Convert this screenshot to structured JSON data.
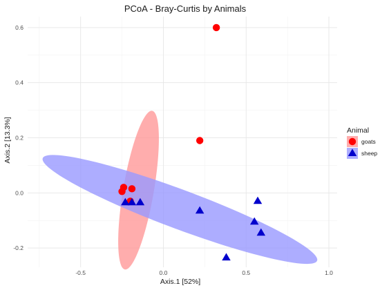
{
  "chart_data": {
    "type": "scatter",
    "title": "PCoA - Bray-Curtis by Animals",
    "xlabel": "Axis.1   [52%]",
    "ylabel": "Axis.2   [13.3%]",
    "xlim": [
      -0.82,
      1.05
    ],
    "ylim": [
      -0.27,
      0.64
    ],
    "x_ticks": [
      -0.5,
      0.0,
      0.5,
      1.0
    ],
    "x_tick_labels": [
      "-0.5",
      "0.0",
      "0.5",
      "1.0"
    ],
    "y_ticks": [
      -0.2,
      0.0,
      0.2,
      0.4,
      0.6
    ],
    "y_tick_labels": [
      "-0.2",
      "0.0",
      "0.2",
      "0.4",
      "0.6"
    ],
    "grid": true,
    "legend": {
      "title": "Animal",
      "placement": "right"
    },
    "series": [
      {
        "name": "goats",
        "color": "#ff0000",
        "marker": "circle",
        "points": [
          {
            "x": 0.32,
            "y": 0.6
          },
          {
            "x": 0.22,
            "y": 0.19
          },
          {
            "x": -0.24,
            "y": 0.02
          },
          {
            "x": -0.25,
            "y": 0.005
          },
          {
            "x": -0.19,
            "y": 0.015
          },
          {
            "x": -0.2,
            "y": -0.03
          }
        ],
        "ellipse": {
          "fill": "#ff9999",
          "opacity": 0.8,
          "center": [
            -0.15,
            0.01
          ],
          "semi_major": 0.3,
          "semi_minor": 0.09,
          "angle_deg": 73
        }
      },
      {
        "name": "sheep",
        "color": "#0000cc",
        "marker": "triangle",
        "points": [
          {
            "x": -0.23,
            "y": -0.035
          },
          {
            "x": -0.19,
            "y": -0.035
          },
          {
            "x": -0.14,
            "y": -0.035
          },
          {
            "x": 0.22,
            "y": -0.065
          },
          {
            "x": 0.57,
            "y": -0.03
          },
          {
            "x": 0.55,
            "y": -0.105
          },
          {
            "x": 0.59,
            "y": -0.145
          },
          {
            "x": 0.38,
            "y": -0.235
          }
        ],
        "ellipse": {
          "fill": "#9999ff",
          "opacity": 0.8,
          "center": [
            0.1,
            -0.06
          ],
          "semi_major": 0.85,
          "semi_minor": 0.074,
          "angle_deg": -12.5
        }
      }
    ]
  }
}
